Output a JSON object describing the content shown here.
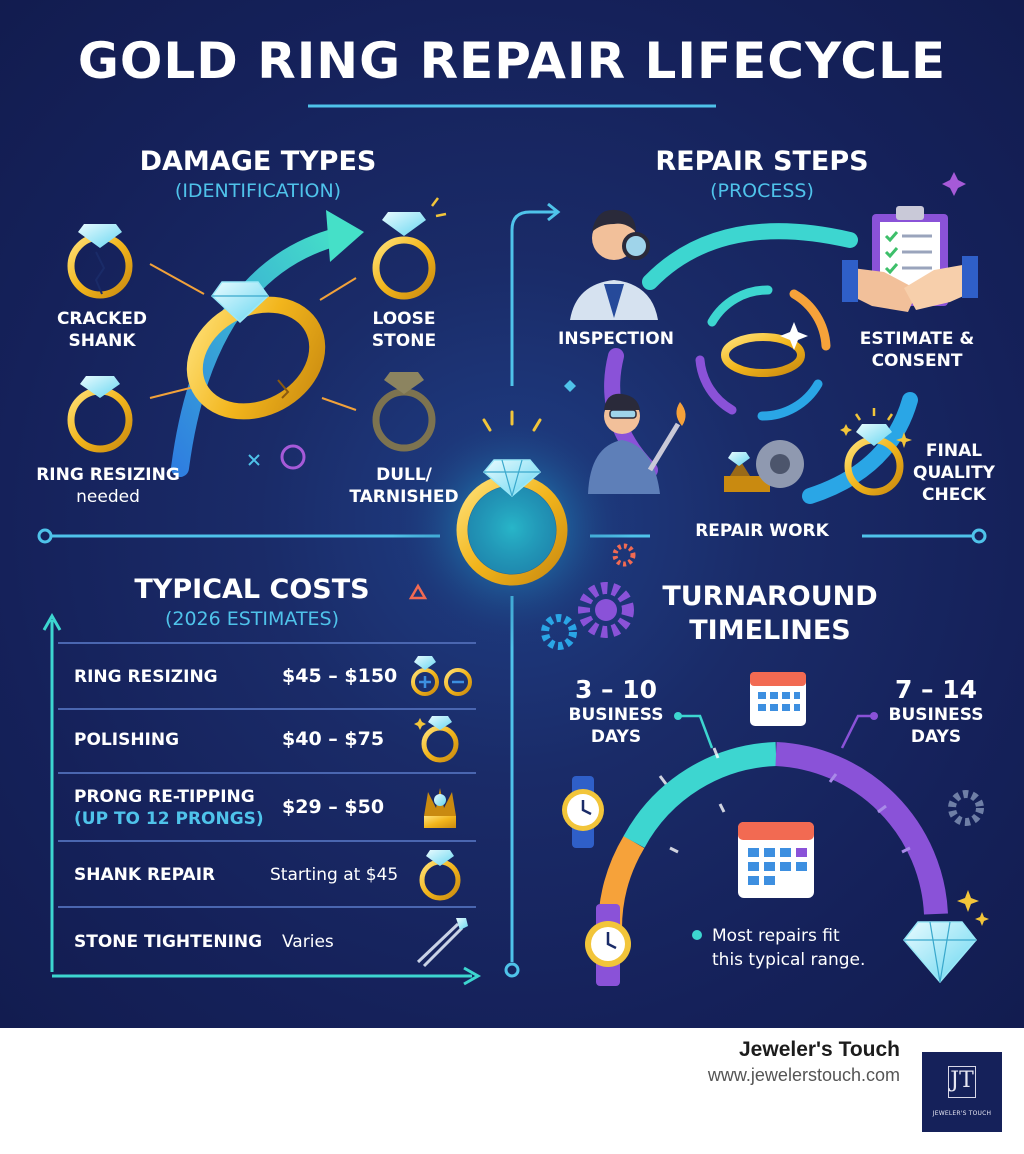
{
  "title": "GOLD RING REPAIR LIFECYCLE",
  "damage": {
    "heading": "DAMAGE TYPES",
    "subheading": "(IDENTIFICATION)",
    "items": [
      {
        "line1": "CRACKED",
        "line2": "SHANK"
      },
      {
        "line1": "LOOSE",
        "line2": "STONE"
      },
      {
        "line1": "RING RESIZING",
        "line2": "needed"
      },
      {
        "line1": "DULL/",
        "line2": "TARNISHED"
      }
    ]
  },
  "repair": {
    "heading": "REPAIR STEPS",
    "subheading": "(PROCESS)",
    "steps": [
      {
        "line1": "INSPECTION",
        "line2": ""
      },
      {
        "line1": "ESTIMATE &",
        "line2": "CONSENT"
      },
      {
        "line1": "REPAIR WORK",
        "line2": ""
      },
      {
        "line1": "FINAL",
        "line2": "QUALITY",
        "line3": "CHECK"
      }
    ]
  },
  "costs": {
    "heading": "TYPICAL COSTS",
    "subheading": "(2026 ESTIMATES)",
    "rows": [
      {
        "name": "RING RESIZING",
        "sub": "",
        "value": "$45 – $150"
      },
      {
        "name": "POLISHING",
        "sub": "",
        "value": "$40 – $75"
      },
      {
        "name": "PRONG RE-TIPPING",
        "sub": "(UP TO 12 PRONGS)",
        "value": "$29 – $50"
      },
      {
        "name": "SHANK REPAIR",
        "sub": "",
        "value": "Starting at $45"
      },
      {
        "name": "STONE TIGHTENING",
        "sub": "",
        "value": "Varies"
      }
    ]
  },
  "turnaround": {
    "heading_line1": "TURNAROUND",
    "heading_line2": "TIMELINES",
    "short": {
      "range": "3 – 10",
      "unit_line1": "BUSINESS",
      "unit_line2": "DAYS"
    },
    "long": {
      "range": "7 – 14",
      "unit_line1": "BUSINESS",
      "unit_line2": "DAYS"
    },
    "note_line1": "Most repairs fit",
    "note_line2": "this typical range."
  },
  "footer": {
    "brand": "Jeweler's Touch",
    "url": "www.jewelerstouch.com",
    "logo_text": "JEWELER'S TOUCH"
  },
  "colors": {
    "background": "#15215a",
    "gold": "#f2b51c",
    "teal": "#3dd6d0",
    "purple": "#8a52d8",
    "accent_blue": "#4fc3ea",
    "orange": "#f6a23a"
  },
  "icons": [
    "ring-icon",
    "diamond-icon",
    "arrow-icon",
    "magnifier-icon",
    "clipboard-icon",
    "handshake-icon",
    "torch-icon",
    "gear-icon",
    "calendar-icon",
    "watch-icon",
    "tweezers-icon",
    "sparkle-icon"
  ]
}
